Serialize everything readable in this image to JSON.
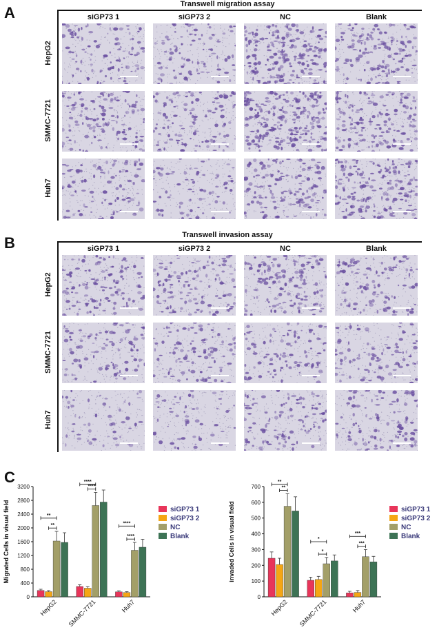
{
  "panels": {
    "A": {
      "letter": "A",
      "title": "Transwell migration assay",
      "columns": [
        "siGP73 1",
        "siGP73 2",
        "NC",
        "Blank"
      ],
      "rows": [
        "HepG2",
        "SMMC-7721",
        "Huh7"
      ]
    },
    "B": {
      "letter": "B",
      "title": "Transwell invasion assay",
      "columns": [
        "siGP73 1",
        "siGP73 2",
        "NC",
        "Blank"
      ],
      "rows": [
        "HepG2",
        "SMMC-7721",
        "Huh7"
      ]
    },
    "C": {
      "letter": "C"
    }
  },
  "colors": {
    "siGP73 1": "#e8355a",
    "siGP73 2": "#f5a614",
    "NC": "#a39f68",
    "Blank": "#3d7355",
    "stain_light": "#d9d6e3",
    "stain_dark": "#6a4fa0"
  },
  "chart_data": [
    {
      "type": "bar",
      "title": "",
      "xlabel": "",
      "ylabel": "Migrated Cells in visual field",
      "ylim": [
        0,
        3200
      ],
      "yticks": [
        0,
        400,
        800,
        1200,
        1600,
        2000,
        2400,
        2800,
        3200
      ],
      "categories": [
        "HepG2",
        "SMMC-7721",
        "Huh7"
      ],
      "series": [
        {
          "name": "siGP73 1",
          "values": [
            185,
            300,
            145
          ],
          "errors": [
            35,
            50,
            30
          ]
        },
        {
          "name": "siGP73 2",
          "values": [
            150,
            250,
            125
          ],
          "errors": [
            30,
            45,
            25
          ]
        },
        {
          "name": "NC",
          "values": [
            1620,
            2650,
            1350
          ],
          "errors": [
            280,
            380,
            230
          ]
        },
        {
          "name": "Blank",
          "values": [
            1580,
            2750,
            1440
          ],
          "errors": [
            280,
            350,
            230
          ]
        }
      ],
      "significance": [
        {
          "category": 0,
          "from": 0,
          "to": 2,
          "label": "**"
        },
        {
          "category": 0,
          "from": 1,
          "to": 2,
          "label": "**"
        },
        {
          "category": 1,
          "from": 0,
          "to": 2,
          "label": "****"
        },
        {
          "category": 1,
          "from": 1,
          "to": 2,
          "label": "****"
        },
        {
          "category": 2,
          "from": 0,
          "to": 2,
          "label": "****"
        },
        {
          "category": 2,
          "from": 1,
          "to": 2,
          "label": "****"
        }
      ],
      "legend": "right"
    },
    {
      "type": "bar",
      "title": "",
      "xlabel": "",
      "ylabel": "invaded Cells in visual field",
      "ylim": [
        0,
        700
      ],
      "yticks": [
        0,
        100,
        200,
        300,
        400,
        500,
        600,
        700
      ],
      "categories": [
        "HepG2",
        "SMMC-7721",
        "Huh7"
      ],
      "series": [
        {
          "name": "siGP73 1",
          "values": [
            245,
            105,
            25
          ],
          "errors": [
            40,
            20,
            10
          ]
        },
        {
          "name": "siGP73 2",
          "values": [
            205,
            110,
            28
          ],
          "errors": [
            40,
            20,
            12
          ]
        },
        {
          "name": "NC",
          "values": [
            575,
            210,
            255
          ],
          "errors": [
            80,
            40,
            45
          ]
        },
        {
          "name": "Blank",
          "values": [
            545,
            228,
            222
          ],
          "errors": [
            90,
            38,
            35
          ]
        }
      ],
      "significance": [
        {
          "category": 0,
          "from": 0,
          "to": 2,
          "label": "**"
        },
        {
          "category": 0,
          "from": 1,
          "to": 2,
          "label": "**"
        },
        {
          "category": 1,
          "from": 0,
          "to": 2,
          "label": "*"
        },
        {
          "category": 1,
          "from": 1,
          "to": 2,
          "label": "*"
        },
        {
          "category": 2,
          "from": 0,
          "to": 2,
          "label": "***"
        },
        {
          "category": 2,
          "from": 1,
          "to": 2,
          "label": "***"
        }
      ],
      "legend": "right"
    }
  ]
}
